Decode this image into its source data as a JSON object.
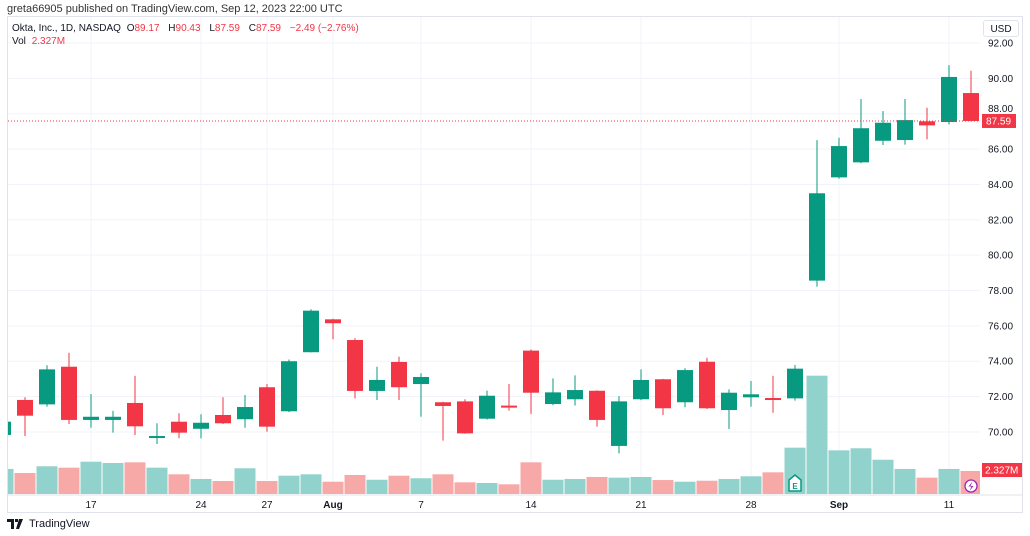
{
  "header": {
    "published": "greta66905 published on TradingView.com, Sep 12, 2023 22:00 UTC"
  },
  "legend": {
    "symbol": "Okta, Inc., 1D, NASDAQ",
    "o_label": "O",
    "o": "89.17",
    "h_label": "H",
    "h": "90.43",
    "l_label": "L",
    "l": "87.59",
    "c_label": "C",
    "c": "87.59",
    "change": "−2.49 (−2.76%)",
    "vol_label": "Vol",
    "vol": "2.327M"
  },
  "currency_button": "USD",
  "last_price_label": "87.59",
  "last_volume_label": "2.327M",
  "branding": "TradingView",
  "colors": {
    "up": "#089981",
    "down": "#f23645",
    "up_vol": "#92d2cc",
    "down_vol": "#f7a9a7"
  },
  "chart_data": {
    "type": "candlestick",
    "title": "Okta, Inc., 1D, NASDAQ",
    "ylim": [
      68,
      93
    ],
    "y_ticks": [
      "92.00",
      "90.00",
      "88.00",
      "86.00",
      "84.00",
      "82.00",
      "80.00",
      "78.00",
      "76.00",
      "74.00",
      "72.00",
      "70.00"
    ],
    "x_ticks": [
      {
        "label": "17",
        "index": 4,
        "bold": false
      },
      {
        "label": "24",
        "index": 9,
        "bold": false
      },
      {
        "label": "27",
        "index": 12,
        "bold": false
      },
      {
        "label": "Aug",
        "index": 15,
        "bold": true
      },
      {
        "label": "7",
        "index": 19,
        "bold": false
      },
      {
        "label": "14",
        "index": 24,
        "bold": false
      },
      {
        "label": "21",
        "index": 29,
        "bold": false
      },
      {
        "label": "28",
        "index": 34,
        "bold": false
      },
      {
        "label": "Sep",
        "index": 38,
        "bold": true
      },
      {
        "label": "11",
        "index": 43,
        "bold": false
      }
    ],
    "candles": [
      [
        69.83,
        70.6,
        69.8,
        70.58,
        2.53
      ],
      [
        71.81,
        71.96,
        69.77,
        70.92,
        2.12
      ],
      [
        71.56,
        73.77,
        71.43,
        73.54,
        2.8
      ],
      [
        73.69,
        74.48,
        70.45,
        70.68,
        2.66
      ],
      [
        70.68,
        72.15,
        70.24,
        70.86,
        3.26
      ],
      [
        70.68,
        71.19,
        69.96,
        70.86,
        3.13
      ],
      [
        71.64,
        73.17,
        69.83,
        70.32,
        3.2
      ],
      [
        69.68,
        70.49,
        69.32,
        69.77,
        2.66
      ],
      [
        70.58,
        71.06,
        69.64,
        69.96,
        1.99
      ],
      [
        70.18,
        71.0,
        69.64,
        70.52,
        1.52
      ],
      [
        70.96,
        71.96,
        70.45,
        70.49,
        1.31
      ],
      [
        70.72,
        72.09,
        70.24,
        71.41,
        2.6
      ],
      [
        72.53,
        72.71,
        70.01,
        70.3,
        1.31
      ],
      [
        71.17,
        74.1,
        71.12,
        74.0,
        1.85
      ],
      [
        74.51,
        76.94,
        74.5,
        76.86,
        1.99
      ],
      [
        76.37,
        76.4,
        75.24,
        76.15,
        1.24
      ],
      [
        75.2,
        75.3,
        71.9,
        72.32,
        1.92
      ],
      [
        72.32,
        73.69,
        71.81,
        72.94,
        1.44
      ],
      [
        73.96,
        74.26,
        71.81,
        72.53,
        1.85
      ],
      [
        72.71,
        73.32,
        70.86,
        73.11,
        1.59
      ],
      [
        71.68,
        71.7,
        69.51,
        71.47,
        1.99
      ],
      [
        71.73,
        71.85,
        69.9,
        69.92,
        1.18
      ],
      [
        70.75,
        72.34,
        70.7,
        72.05,
        1.11
      ],
      [
        71.49,
        72.71,
        71.21,
        71.38,
        0.98
      ],
      [
        74.6,
        74.67,
        71.02,
        72.22,
        3.2
      ],
      [
        71.58,
        73.03,
        71.51,
        72.24,
        1.44
      ],
      [
        71.85,
        73.2,
        71.5,
        72.37,
        1.52
      ],
      [
        72.33,
        72.35,
        70.3,
        70.68,
        1.72
      ],
      [
        69.21,
        72.03,
        68.79,
        71.73,
        1.65
      ],
      [
        71.85,
        73.54,
        71.8,
        72.94,
        1.72
      ],
      [
        72.98,
        73.0,
        70.96,
        71.34,
        1.41
      ],
      [
        71.68,
        73.6,
        71.4,
        73.5,
        1.24
      ],
      [
        73.97,
        74.2,
        71.3,
        71.34,
        1.34
      ],
      [
        71.24,
        72.41,
        70.17,
        72.22,
        1.52
      ],
      [
        71.96,
        72.88,
        71.43,
        72.13,
        1.79
      ],
      [
        71.92,
        73.17,
        71.09,
        71.83,
        2.19
      ],
      [
        71.9,
        73.79,
        71.77,
        73.58,
        4.68
      ],
      [
        78.56,
        86.51,
        78.22,
        83.5,
        11.95
      ],
      [
        84.4,
        86.64,
        84.32,
        86.17,
        4.41
      ],
      [
        85.25,
        88.83,
        85.2,
        87.18,
        4.62
      ],
      [
        86.47,
        88.15,
        86.23,
        87.49,
        3.46
      ],
      [
        86.51,
        88.83,
        86.25,
        87.64,
        2.53
      ],
      [
        87.57,
        88.34,
        86.55,
        87.34,
        1.65
      ],
      [
        87.53,
        90.75,
        87.4,
        90.08,
        2.53
      ],
      [
        89.17,
        90.43,
        87.59,
        87.59,
        2.327
      ]
    ],
    "candle_fields": [
      "open",
      "high",
      "low",
      "close",
      "volume_M"
    ],
    "last_price": 87.59,
    "markers": [
      {
        "type": "earnings",
        "label": "E",
        "index": 36
      },
      {
        "type": "lightning",
        "index": 44
      }
    ]
  }
}
